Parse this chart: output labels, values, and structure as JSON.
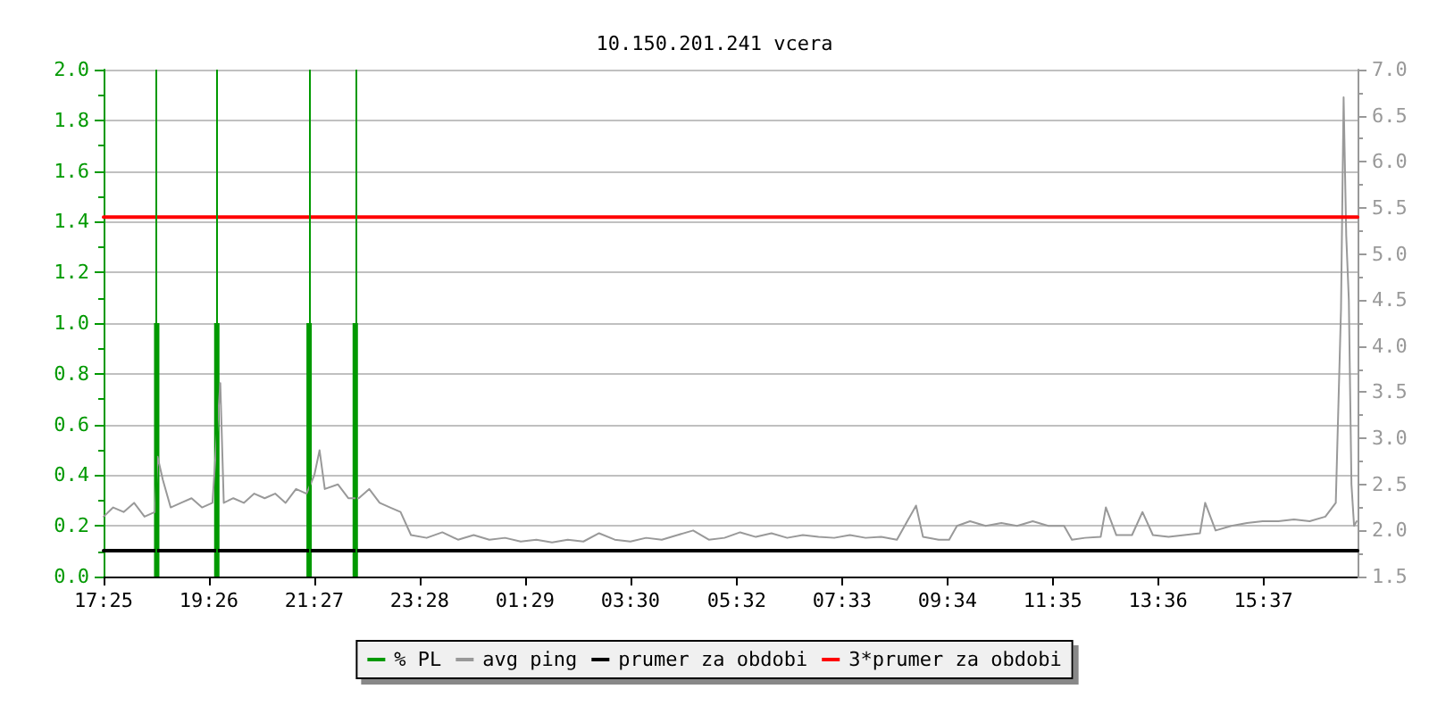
{
  "chart_data": {
    "type": "line",
    "title": "10.150.201.241 vcera",
    "xlim": [
      "--01-01T17:25",
      "--01-02T17:25"
    ],
    "xticks": [
      {
        "value": "--01-01T17:25",
        "label": "17:25"
      },
      {
        "value": "--01-01T19:26",
        "label": "19:26"
      },
      {
        "value": "--01-01T21:27",
        "label": "21:27"
      },
      {
        "value": "--01-01T23:28",
        "label": "23:28"
      },
      {
        "value": "--01-02T01:29",
        "label": "01:29"
      },
      {
        "value": "--01-02T03:30",
        "label": "03:30"
      },
      {
        "value": "--01-02T05:32",
        "label": "05:32"
      },
      {
        "value": "--01-02T07:33",
        "label": "07:33"
      },
      {
        "value": "--01-02T09:34",
        "label": "09:34"
      },
      {
        "value": "--01-02T11:35",
        "label": "11:35"
      },
      {
        "value": "--01-02T13:36",
        "label": "13:36"
      },
      {
        "value": "--01-02T15:37",
        "label": "15:37"
      }
    ],
    "ylim": [
      0,
      2
    ],
    "yticks": [
      {
        "value": 0,
        "label": "0.0"
      },
      {
        "value": 0.2,
        "label": "0.2"
      },
      {
        "value": 0.4,
        "label": "0.4"
      },
      {
        "value": 0.6,
        "label": "0.6"
      },
      {
        "value": 0.8,
        "label": "0.8"
      },
      {
        "value": 1,
        "label": "1.0"
      },
      {
        "value": 1.2,
        "label": "1.2"
      },
      {
        "value": 1.4,
        "label": "1.4"
      },
      {
        "value": 1.6,
        "label": "1.6"
      },
      {
        "value": 1.8,
        "label": "1.8"
      },
      {
        "value": 2,
        "label": "2.0"
      }
    ],
    "y2lim": [
      1.5,
      7
    ],
    "y2ticks": [
      {
        "value": 1.5,
        "label": "1.5"
      },
      {
        "value": 2,
        "label": "2.0"
      },
      {
        "value": 2.5,
        "label": "2.5"
      },
      {
        "value": 3,
        "label": "3.0"
      },
      {
        "value": 3.5,
        "label": "3.5"
      },
      {
        "value": 4,
        "label": "4.0"
      },
      {
        "value": 4.5,
        "label": "4.5"
      },
      {
        "value": 5,
        "label": "5.0"
      },
      {
        "value": 5.5,
        "label": "5.5"
      },
      {
        "value": 6,
        "label": "6.0"
      },
      {
        "value": 6.5,
        "label": "6.5"
      },
      {
        "value": 7,
        "label": "7.0"
      }
    ],
    "grid": "y",
    "legend": "bottom",
    "marker": "none",
    "line_style": "solid",
    "ref_lines": [
      {
        "axis": "x",
        "value": "--01-01T18:26",
        "color": "#009900"
      },
      {
        "axis": "x",
        "value": "--01-01T19:35",
        "color": "#009900"
      },
      {
        "axis": "x",
        "value": "--01-01T21:21",
        "color": "#009900"
      },
      {
        "axis": "x",
        "value": "--01-01T22:14",
        "color": "#009900"
      }
    ],
    "series": [
      {
        "name": "% PL",
        "type": "bar",
        "color": "#009900",
        "x": [
          "--01-01T18:26",
          "--01-01T19:35",
          "--01-01T21:21",
          "--01-01T22:14"
        ],
        "values": [
          1,
          1,
          1,
          1
        ]
      },
      {
        "name": "avg ping",
        "axis": "y2",
        "color": "#999999",
        "x": [
          "--01-01T17:25",
          "--01-01T17:36",
          "--01-01T17:48",
          "--01-01T18:00",
          "--01-01T18:12",
          "--01-01T18:24",
          "--01-01T18:27",
          "--01-01T18:33",
          "--01-01T18:42",
          "--01-01T18:54",
          "--01-01T19:06",
          "--01-01T19:18",
          "--01-01T19:30",
          "--01-01T19:39",
          "--01-01T19:43",
          "--01-01T19:54",
          "--01-01T20:06",
          "--01-01T20:18",
          "--01-01T20:30",
          "--01-01T20:42",
          "--01-01T20:54",
          "--01-01T21:06",
          "--01-01T21:18",
          "--01-01T21:27",
          "--01-01T21:33",
          "--01-01T21:39",
          "--01-01T21:54",
          "--01-01T22:06",
          "--01-01T22:18",
          "--01-01T22:30",
          "--01-01T22:42",
          "--01-01T22:54",
          "--01-01T23:06",
          "--01-01T23:18",
          "--01-01T23:36",
          "--01-01T23:54",
          "--01-02T00:12",
          "--01-02T00:30",
          "--01-02T00:48",
          "--01-02T01:06",
          "--01-02T01:24",
          "--01-02T01:42",
          "--01-02T02:00",
          "--01-02T02:18",
          "--01-02T02:36",
          "--01-02T02:54",
          "--01-02T03:12",
          "--01-02T03:30",
          "--01-02T03:48",
          "--01-02T04:06",
          "--01-02T04:24",
          "--01-02T04:42",
          "--01-02T05:00",
          "--01-02T05:18",
          "--01-02T05:36",
          "--01-02T05:54",
          "--01-02T06:12",
          "--01-02T06:30",
          "--01-02T06:48",
          "--01-02T07:06",
          "--01-02T07:24",
          "--01-02T07:42",
          "--01-02T08:00",
          "--01-02T08:18",
          "--01-02T08:36",
          "--01-02T08:58",
          "--01-02T09:06",
          "--01-02T09:24",
          "--01-02T09:36",
          "--01-02T09:45",
          "--01-02T10:00",
          "--01-02T10:18",
          "--01-02T10:36",
          "--01-02T10:54",
          "--01-02T11:12",
          "--01-02T11:30",
          "--01-02T11:48",
          "--01-02T11:57",
          "--01-02T12:12",
          "--01-02T12:30",
          "--01-02T12:36",
          "--01-02T12:48",
          "--01-02T13:06",
          "--01-02T13:18",
          "--01-02T13:30",
          "--01-02T13:48",
          "--01-02T14:06",
          "--01-02T14:24",
          "--01-02T14:30",
          "--01-02T14:42",
          "--01-02T15:00",
          "--01-02T15:18",
          "--01-02T15:36",
          "--01-02T15:54",
          "--01-02T16:12",
          "--01-02T16:30",
          "--01-02T16:48",
          "--01-02T17:00",
          "--01-02T17:06",
          "--01-02T17:09",
          "--01-02T17:12",
          "--01-02T17:15",
          "--01-02T17:18",
          "--01-02T17:21",
          "--01-02T17:24"
        ],
        "values": [
          2.15,
          2.25,
          2.2,
          2.3,
          2.15,
          2.2,
          2.8,
          2.55,
          2.25,
          2.3,
          2.35,
          2.25,
          2.3,
          3.6,
          2.3,
          2.35,
          2.3,
          2.4,
          2.35,
          2.4,
          2.3,
          2.45,
          2.4,
          2.6,
          2.87,
          2.45,
          2.5,
          2.35,
          2.35,
          2.45,
          2.3,
          2.25,
          2.2,
          1.95,
          1.92,
          1.98,
          1.9,
          1.95,
          1.9,
          1.92,
          1.88,
          1.9,
          1.87,
          1.9,
          1.88,
          1.97,
          1.9,
          1.88,
          1.92,
          1.9,
          1.95,
          2.0,
          1.9,
          1.92,
          1.98,
          1.93,
          1.97,
          1.92,
          1.95,
          1.93,
          1.92,
          1.95,
          1.92,
          1.93,
          1.9,
          2.27,
          1.93,
          1.9,
          1.9,
          2.05,
          2.1,
          2.05,
          2.08,
          2.05,
          2.1,
          2.05,
          2.05,
          1.9,
          1.92,
          1.93,
          2.25,
          1.95,
          1.95,
          2.2,
          1.95,
          1.93,
          1.95,
          1.97,
          2.3,
          2.0,
          2.05,
          2.08,
          2.1,
          2.1,
          2.12,
          2.1,
          2.15,
          2.3,
          4.4,
          6.7,
          5.2,
          4.5,
          2.5,
          2.05,
          2.1
        ]
      },
      {
        "name": "prumer za obdobi",
        "axis": "y2",
        "color": "#000000",
        "x": [
          "--01-01T17:25",
          "--01-02T17:25"
        ],
        "values": [
          1.78,
          1.78
        ]
      },
      {
        "name": "3*prumer za obdobi",
        "axis": "y2",
        "color": "#ff0000",
        "x": [
          "--01-01T17:25",
          "--01-02T17:25"
        ],
        "values": [
          5.4,
          5.4
        ]
      }
    ]
  }
}
